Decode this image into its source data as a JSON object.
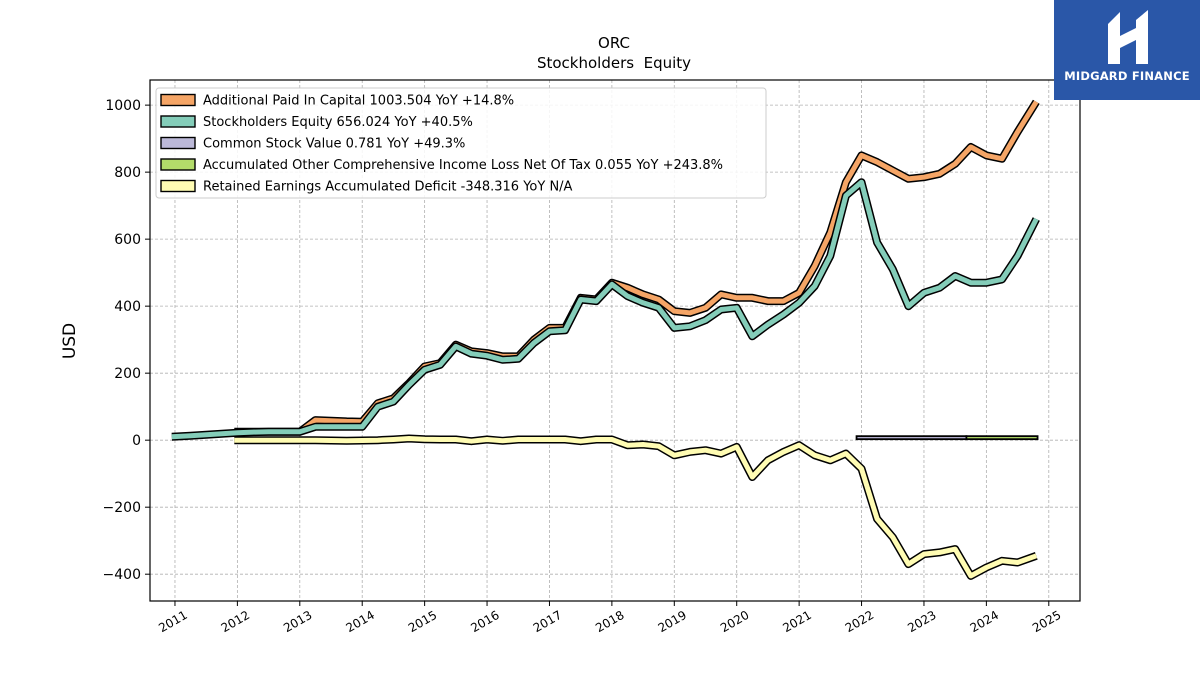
{
  "chart_data": {
    "type": "line",
    "title": "ORC",
    "subtitle": "Stockholders  Equity",
    "ylabel": "USD",
    "xlabel": "",
    "xlim": [
      2010.6,
      2025.5
    ],
    "ylim": [
      -480,
      1075
    ],
    "yticks": [
      -400,
      -200,
      0,
      200,
      400,
      600,
      800,
      1000
    ],
    "ytick_labels": [
      "−400",
      "−200",
      "0",
      "200",
      "400",
      "600",
      "800",
      "1000"
    ],
    "xticks": [
      2011,
      2012,
      2013,
      2014,
      2015,
      2016,
      2017,
      2018,
      2019,
      2020,
      2021,
      2022,
      2023,
      2024,
      2025
    ],
    "xtick_labels": [
      "2011",
      "2012",
      "2013",
      "2014",
      "2015",
      "2016",
      "2017",
      "2018",
      "2019",
      "2020",
      "2021",
      "2022",
      "2023",
      "2024",
      "2025"
    ],
    "grid": true,
    "legend_position": "top-left",
    "series": [
      {
        "name": "Additional Paid In Capital  1003.504 YoY +14.8%",
        "color": "#f5a566",
        "points": [
          [
            2011.95,
            25
          ],
          [
            2012.2,
            25
          ],
          [
            2012.5,
            25
          ],
          [
            2012.75,
            25
          ],
          [
            2013.0,
            25
          ],
          [
            2013.25,
            60
          ],
          [
            2013.5,
            58
          ],
          [
            2013.75,
            56
          ],
          [
            2014.0,
            55
          ],
          [
            2014.25,
            110
          ],
          [
            2014.5,
            125
          ],
          [
            2014.75,
            170
          ],
          [
            2015.0,
            220
          ],
          [
            2015.25,
            230
          ],
          [
            2015.5,
            285
          ],
          [
            2015.75,
            265
          ],
          [
            2016.0,
            260
          ],
          [
            2016.25,
            250
          ],
          [
            2016.5,
            250
          ],
          [
            2016.75,
            300
          ],
          [
            2017.0,
            335
          ],
          [
            2017.25,
            335
          ],
          [
            2017.5,
            425
          ],
          [
            2017.75,
            420
          ],
          [
            2018.0,
            470
          ],
          [
            2018.25,
            455
          ],
          [
            2018.5,
            435
          ],
          [
            2018.75,
            420
          ],
          [
            2019.0,
            385
          ],
          [
            2019.25,
            380
          ],
          [
            2019.5,
            395
          ],
          [
            2019.75,
            435
          ],
          [
            2020.0,
            425
          ],
          [
            2020.25,
            425
          ],
          [
            2020.5,
            415
          ],
          [
            2020.75,
            415
          ],
          [
            2021.0,
            440
          ],
          [
            2021.25,
            520
          ],
          [
            2021.5,
            620
          ],
          [
            2021.75,
            770
          ],
          [
            2022.0,
            850
          ],
          [
            2022.25,
            830
          ],
          [
            2022.5,
            805
          ],
          [
            2022.75,
            780
          ],
          [
            2023.0,
            785
          ],
          [
            2023.25,
            795
          ],
          [
            2023.5,
            825
          ],
          [
            2023.75,
            875
          ],
          [
            2024.0,
            850
          ],
          [
            2024.25,
            840
          ],
          [
            2024.5,
            920
          ],
          [
            2024.8,
            1010
          ]
        ]
      },
      {
        "name": "Stockholders Equity  656.024 YoY +40.5%",
        "color": "#84cdb9",
        "points": [
          [
            2010.95,
            10
          ],
          [
            2011.25,
            13
          ],
          [
            2011.5,
            16
          ],
          [
            2011.75,
            19
          ],
          [
            2012.0,
            22
          ],
          [
            2012.25,
            24
          ],
          [
            2012.5,
            25
          ],
          [
            2012.75,
            25
          ],
          [
            2013.0,
            25
          ],
          [
            2013.25,
            40
          ],
          [
            2013.5,
            40
          ],
          [
            2013.75,
            40
          ],
          [
            2014.0,
            40
          ],
          [
            2014.25,
            100
          ],
          [
            2014.5,
            115
          ],
          [
            2014.75,
            165
          ],
          [
            2015.0,
            210
          ],
          [
            2015.25,
            225
          ],
          [
            2015.5,
            280
          ],
          [
            2015.75,
            258
          ],
          [
            2016.0,
            252
          ],
          [
            2016.25,
            240
          ],
          [
            2016.5,
            243
          ],
          [
            2016.75,
            290
          ],
          [
            2017.0,
            325
          ],
          [
            2017.25,
            328
          ],
          [
            2017.5,
            420
          ],
          [
            2017.75,
            415
          ],
          [
            2018.0,
            465
          ],
          [
            2018.25,
            430
          ],
          [
            2018.5,
            410
          ],
          [
            2018.75,
            395
          ],
          [
            2019.0,
            335
          ],
          [
            2019.25,
            340
          ],
          [
            2019.5,
            358
          ],
          [
            2019.75,
            390
          ],
          [
            2020.0,
            395
          ],
          [
            2020.25,
            310
          ],
          [
            2020.5,
            345
          ],
          [
            2020.75,
            375
          ],
          [
            2021.0,
            410
          ],
          [
            2021.25,
            460
          ],
          [
            2021.5,
            550
          ],
          [
            2021.75,
            730
          ],
          [
            2022.0,
            770
          ],
          [
            2022.25,
            590
          ],
          [
            2022.5,
            510
          ],
          [
            2022.75,
            400
          ],
          [
            2023.0,
            440
          ],
          [
            2023.25,
            455
          ],
          [
            2023.5,
            490
          ],
          [
            2023.75,
            470
          ],
          [
            2024.0,
            470
          ],
          [
            2024.25,
            480
          ],
          [
            2024.5,
            550
          ],
          [
            2024.8,
            660
          ]
        ]
      },
      {
        "name": "Common Stock Value  0.781 YoY +49.3%",
        "color": "#bcb9d8",
        "bar": [
          2021.92,
          2023.68,
          3,
          12
        ]
      },
      {
        "name": "Accumulated Other Comprehensive Income Loss Net Of Tax  0.055 YoY +243.8%",
        "color": "#b3dc6a",
        "bar": [
          2023.68,
          2024.82,
          3,
          12
        ]
      },
      {
        "name": "Retained Earnings Accumulated Deficit  -348.316 YoY N/A",
        "color": "#fffcb3",
        "points": [
          [
            2011.95,
            0
          ],
          [
            2012.25,
            0
          ],
          [
            2012.5,
            0
          ],
          [
            2012.75,
            0
          ],
          [
            2013.0,
            0
          ],
          [
            2013.25,
            0
          ],
          [
            2013.5,
            -1
          ],
          [
            2013.75,
            -2
          ],
          [
            2014.0,
            -1
          ],
          [
            2014.25,
            0
          ],
          [
            2014.5,
            2
          ],
          [
            2014.75,
            5
          ],
          [
            2015.0,
            3
          ],
          [
            2015.25,
            2
          ],
          [
            2015.5,
            2
          ],
          [
            2015.75,
            -3
          ],
          [
            2016.0,
            2
          ],
          [
            2016.25,
            -2
          ],
          [
            2016.5,
            2
          ],
          [
            2016.75,
            2
          ],
          [
            2017.0,
            2
          ],
          [
            2017.25,
            2
          ],
          [
            2017.5,
            -3
          ],
          [
            2017.75,
            2
          ],
          [
            2018.0,
            2
          ],
          [
            2018.25,
            -15
          ],
          [
            2018.5,
            -13
          ],
          [
            2018.75,
            -18
          ],
          [
            2019.0,
            -45
          ],
          [
            2019.25,
            -35
          ],
          [
            2019.5,
            -30
          ],
          [
            2019.75,
            -40
          ],
          [
            2020.0,
            -20
          ],
          [
            2020.25,
            -110
          ],
          [
            2020.5,
            -60
          ],
          [
            2020.75,
            -35
          ],
          [
            2021.0,
            -15
          ],
          [
            2021.25,
            -45
          ],
          [
            2021.5,
            -60
          ],
          [
            2021.75,
            -40
          ],
          [
            2022.0,
            -85
          ],
          [
            2022.25,
            -235
          ],
          [
            2022.5,
            -290
          ],
          [
            2022.75,
            -370
          ],
          [
            2023.0,
            -340
          ],
          [
            2023.25,
            -335
          ],
          [
            2023.5,
            -325
          ],
          [
            2023.75,
            -405
          ],
          [
            2024.0,
            -380
          ],
          [
            2024.25,
            -360
          ],
          [
            2024.5,
            -365
          ],
          [
            2024.8,
            -345
          ]
        ]
      }
    ]
  },
  "logo": {
    "text": "MIDGARD FINANCE",
    "background": "#2a57a8"
  }
}
